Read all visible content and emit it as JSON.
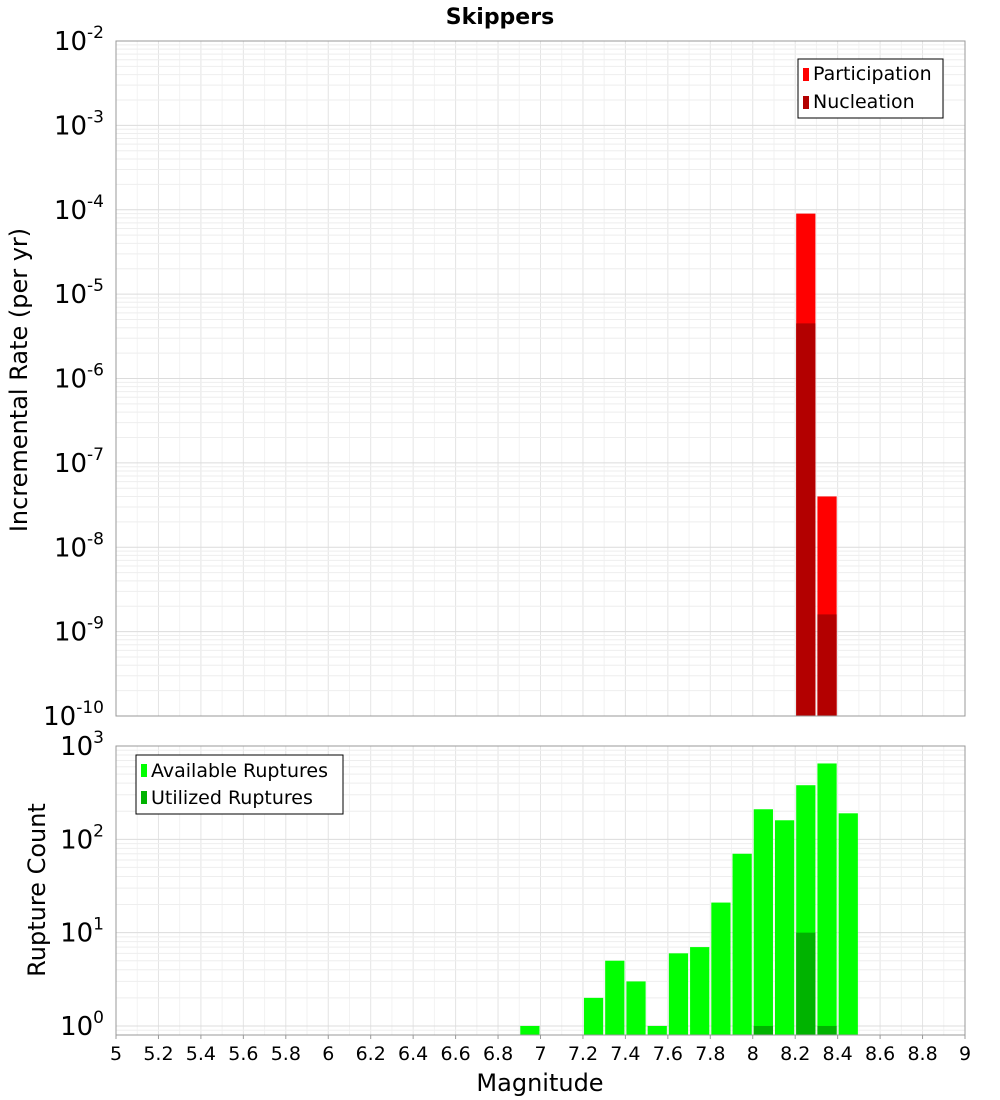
{
  "title": "Skippers",
  "chart_data": [
    {
      "type": "bar",
      "ylabel": "Incremental Rate (per yr)",
      "yscale": "log",
      "ylim": [
        1e-10,
        0.01
      ],
      "xlim": [
        5,
        9
      ],
      "grid": true,
      "bin_width": 0.1,
      "legend": {
        "position": "top-right",
        "entries": [
          "Participation",
          "Nucleation"
        ]
      },
      "y_tick_labels": [
        {
          "base": "10",
          "exp": "-10"
        },
        {
          "base": "10",
          "exp": "-9"
        },
        {
          "base": "10",
          "exp": "-8"
        },
        {
          "base": "10",
          "exp": "-7"
        },
        {
          "base": "10",
          "exp": "-6"
        },
        {
          "base": "10",
          "exp": "-5"
        },
        {
          "base": "10",
          "exp": "-4"
        },
        {
          "base": "10",
          "exp": "-3"
        },
        {
          "base": "10",
          "exp": "-2"
        }
      ],
      "series": [
        {
          "name": "Participation",
          "color": "#ff0000",
          "x": [
            8.25,
            8.35
          ],
          "values": [
            9e-05,
            4e-08
          ]
        },
        {
          "name": "Nucleation",
          "color": "#b30000",
          "x": [
            8.25,
            8.35
          ],
          "values": [
            4.5e-06,
            1.6e-09
          ]
        }
      ]
    },
    {
      "type": "bar",
      "xlabel": "Magnitude",
      "ylabel": "Rupture Count",
      "yscale": "log",
      "ylim": [
        0.8,
        1000
      ],
      "xlim": [
        5,
        9
      ],
      "grid": true,
      "bin_width": 0.1,
      "legend": {
        "position": "top-left",
        "entries": [
          "Available Ruptures",
          "Utilized Ruptures"
        ]
      },
      "y_tick_labels": [
        {
          "base": "10",
          "exp": "0"
        },
        {
          "base": "10",
          "exp": "1"
        },
        {
          "base": "10",
          "exp": "2"
        },
        {
          "base": "10",
          "exp": "3"
        }
      ],
      "x_tick_labels": [
        "5",
        "5.2",
        "5.4",
        "5.6",
        "5.8",
        "6",
        "6.2",
        "6.4",
        "6.6",
        "6.8",
        "7",
        "7.2",
        "7.4",
        "7.6",
        "7.8",
        "8",
        "8.2",
        "8.4",
        "8.6",
        "8.8",
        "9"
      ],
      "series": [
        {
          "name": "Available Ruptures",
          "color": "#00ff00",
          "x": [
            6.95,
            7.25,
            7.35,
            7.45,
            7.55,
            7.65,
            7.75,
            7.85,
            7.95,
            8.05,
            8.15,
            8.25,
            8.35,
            8.45
          ],
          "values": [
            1,
            2,
            5,
            3,
            1,
            6,
            7,
            21,
            70,
            210,
            160,
            380,
            650,
            190
          ]
        },
        {
          "name": "Utilized Ruptures",
          "color": "#00b300",
          "x": [
            8.05,
            8.25,
            8.35
          ],
          "values": [
            1,
            10,
            1
          ]
        }
      ]
    }
  ]
}
